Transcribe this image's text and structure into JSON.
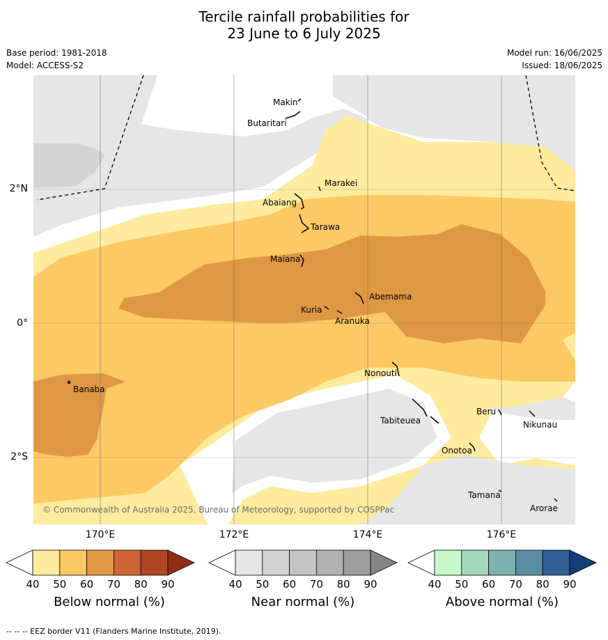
{
  "title_line1": "Tercile rainfall probabilities for",
  "title_line2": "23 June to 6 July 2025",
  "base_period": "Base period: 1981-2018",
  "model": "Model: ACCESS-S2",
  "model_run": "Model run: 16/06/2025",
  "issued": "Issued: 18/06/2025",
  "lat_ticks": [
    "2°N",
    "0°",
    "2°S"
  ],
  "lon_ticks": [
    "170°E",
    "172°E",
    "174°E",
    "176°E"
  ],
  "islands": [
    "Makin",
    "Butaritari",
    "Marakei",
    "Abaiang",
    "Tarawa",
    "Maiana",
    "Abemama",
    "Kuria",
    "Aranuka",
    "Nonouti",
    "Banaba",
    "Beru",
    "Nikunau",
    "Tabiteuea",
    "Onotoa",
    "Tamana",
    "Arorae"
  ],
  "copyright": "© Commonwealth of Australia 2025, Bureau of Meteorology, supported by COSPPac",
  "legends": {
    "below": {
      "title": "Below normal (%)",
      "colors": [
        "#ffeb9e",
        "#fdc965",
        "#e09743",
        "#cd6535",
        "#ae4824",
        "#8f2d17"
      ]
    },
    "near": {
      "title": "Near normal (%)",
      "colors": [
        "#e6e6e6",
        "#d4d4d4",
        "#c4c4c4",
        "#b1b1b1",
        "#9e9e9e",
        "#858585"
      ]
    },
    "above": {
      "title": "Above normal (%)",
      "colors": [
        "#c9f7cb",
        "#a2d8b9",
        "#7db2ae",
        "#5b8fa1",
        "#2f5e95",
        "#133e77"
      ]
    },
    "ticks": [
      "40",
      "50",
      "60",
      "70",
      "80",
      "90"
    ]
  },
  "footnote": "--  --  -- EEZ border V11 (Flanders Marine Institute, 2019)."
}
